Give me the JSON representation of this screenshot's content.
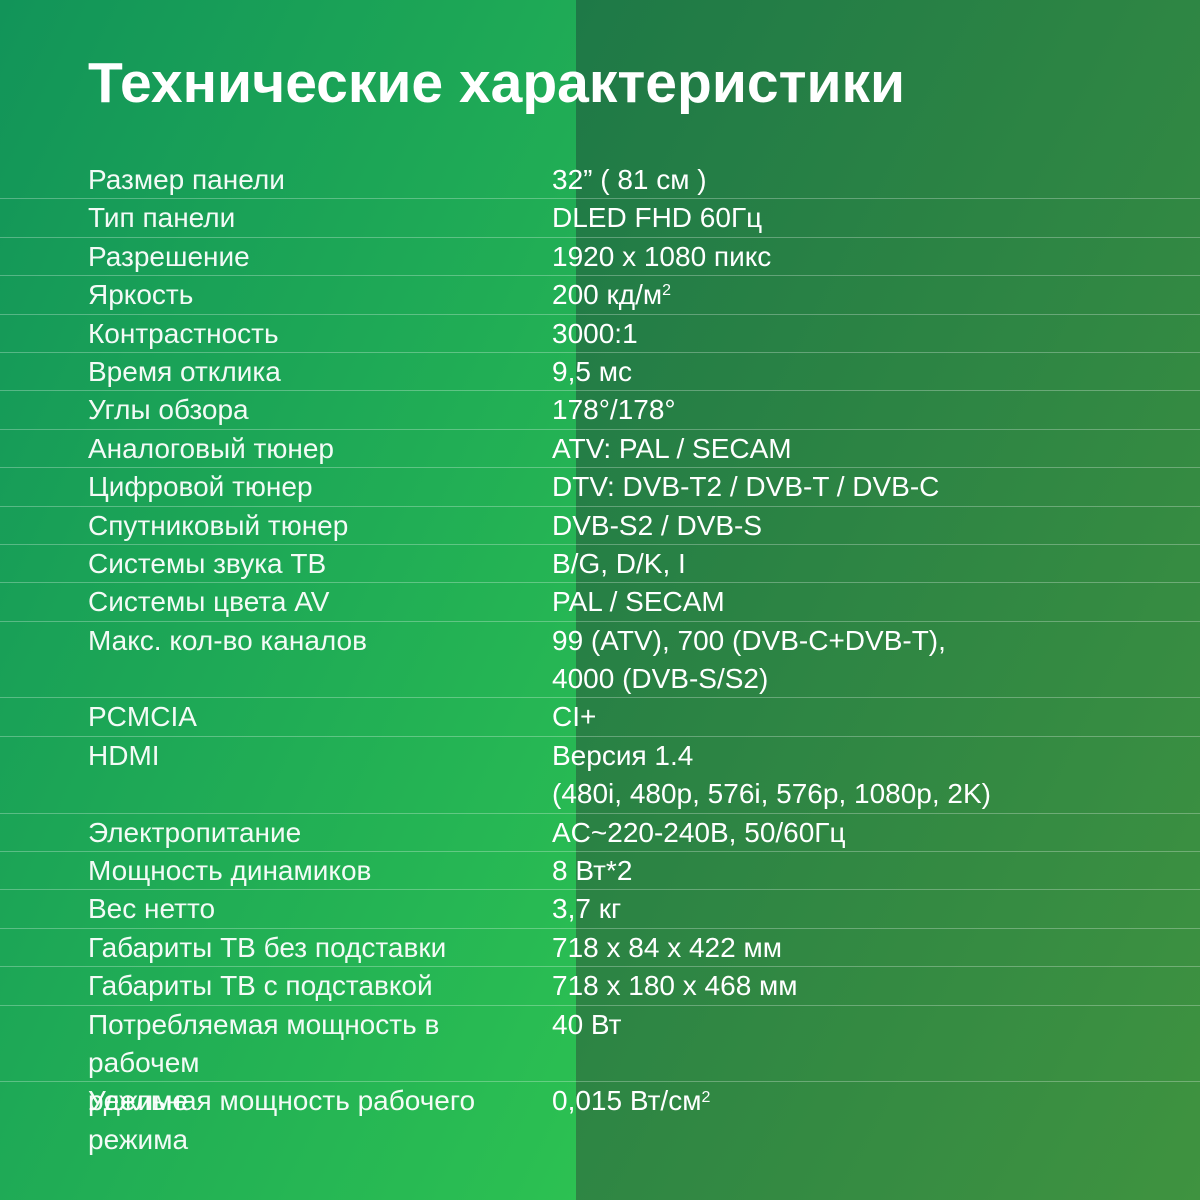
{
  "page": {
    "title": "Технические характеристики"
  },
  "colors": {
    "bg_left_gradient_top": "#129459",
    "bg_left_gradient_bottom": "#2cc152",
    "bg_right_gradient_top": "#1e7947",
    "bg_right_gradient_bottom": "#3f9340",
    "row_divider": "rgba(255,255,255,0.28)",
    "text": "#ffffff"
  },
  "specs": [
    {
      "label": "Размер панели",
      "value": "32” ( 81 см )"
    },
    {
      "label": "Тип панели",
      "value": "DLED FHD 60Гц"
    },
    {
      "label": "Разрешение",
      "value": "1920 x 1080 пикс"
    },
    {
      "label": "Яркость",
      "value": "200 кд/м",
      "value_sup": "2"
    },
    {
      "label": "Контрастность",
      "value": "3000:1"
    },
    {
      "label": "Время отклика",
      "value": "9,5 мс"
    },
    {
      "label": "Углы обзора",
      "value": "178°/178°"
    },
    {
      "label": "Аналоговый тюнер",
      "value": "ATV: PAL / SECAM"
    },
    {
      "label": "Цифровой тюнер",
      "value": "DTV: DVB-T2 / DVB-T / DVB-C"
    },
    {
      "label": "Спутниковый тюнер",
      "value": "DVB-S2 / DVB-S"
    },
    {
      "label": "Системы звука ТВ",
      "value": "B/G, D/K, I"
    },
    {
      "label": "Системы цвета AV",
      "value": "PAL / SECAM"
    },
    {
      "label": "Макс. кол-во каналов",
      "value": "99 (ATV), 700 (DVB-C+DVB-T),",
      "value_line2": "4000 (DVB-S/S2)"
    },
    {
      "label": "PCMCIA",
      "value": "CI+"
    },
    {
      "label": "HDMI",
      "value": "Версия 1.4",
      "value_line2": "(480i, 480p, 576i, 576p, 1080p, 2K)"
    },
    {
      "label": "Электропитание",
      "value": "AC~220-240В, 50/60Гц"
    },
    {
      "label": "Мощность динамиков",
      "value": "8 Вт*2"
    },
    {
      "label": "Вес нетто",
      "value": "3,7 кг"
    },
    {
      "label": "Габариты ТВ без подставки",
      "value": "718 x 84 x 422 мм"
    },
    {
      "label": "Габариты ТВ с подставкой",
      "value": "718 x 180 x 468 мм"
    },
    {
      "label": "Потребляемая мощность в рабочем",
      "label_line2": "режиме",
      "value": "40 Вт"
    },
    {
      "label": "Удельная мощность рабочего",
      "label_line2": "режима",
      "value": "0,015 Вт/см",
      "value_sup": "2"
    }
  ]
}
